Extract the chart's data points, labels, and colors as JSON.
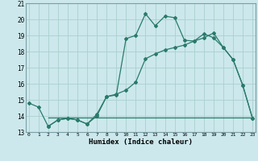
{
  "xlabel": "Humidex (Indice chaleur)",
  "bg_color": "#cce8ec",
  "grid_color": "#aacfcf",
  "line_color": "#2a7a6a",
  "xlim_min": 0,
  "xlim_max": 23,
  "ylim_min": 13,
  "ylim_max": 21,
  "xticks": [
    0,
    1,
    2,
    3,
    4,
    5,
    6,
    7,
    8,
    9,
    10,
    11,
    12,
    13,
    14,
    15,
    16,
    17,
    18,
    19,
    20,
    21,
    22,
    23
  ],
  "yticks": [
    13,
    14,
    15,
    16,
    17,
    18,
    19,
    20,
    21
  ],
  "line1_x": [
    0,
    1,
    2,
    3,
    4,
    5,
    6,
    7,
    8,
    9,
    10,
    11,
    12,
    13,
    14,
    15,
    16,
    17,
    18,
    19,
    20,
    21,
    22,
    23
  ],
  "line1_y": [
    14.8,
    14.55,
    13.35,
    13.75,
    13.85,
    13.75,
    13.5,
    14.0,
    15.2,
    15.3,
    18.8,
    19.0,
    20.35,
    19.6,
    20.2,
    20.1,
    18.7,
    18.65,
    19.1,
    18.85,
    18.25,
    17.5,
    15.9,
    13.85
  ],
  "line2_x": [
    2,
    3,
    4,
    5,
    6,
    7,
    8,
    9,
    10,
    11,
    12,
    13,
    14,
    15,
    16,
    17,
    18,
    19,
    20,
    21,
    22,
    23
  ],
  "line2_y": [
    13.35,
    13.75,
    13.85,
    13.75,
    13.5,
    14.1,
    15.2,
    15.35,
    15.6,
    16.1,
    17.55,
    17.85,
    18.1,
    18.25,
    18.4,
    18.65,
    18.85,
    19.15,
    18.25,
    17.5,
    15.9,
    13.85
  ],
  "line3_x": [
    2,
    23
  ],
  "line3_y": [
    13.9,
    13.9
  ]
}
